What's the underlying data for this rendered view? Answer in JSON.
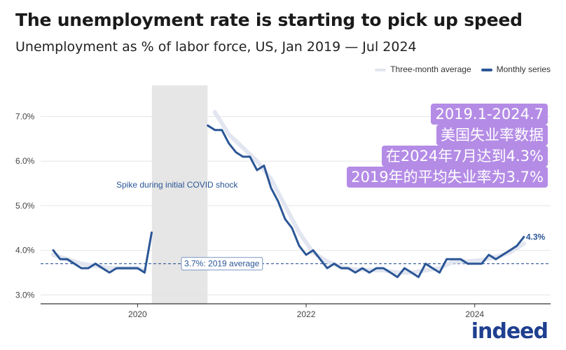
{
  "header": {
    "title": "The unemployment rate is starting to pick up speed",
    "subtitle": "Unemployment as % of labor force, US, Jan 2019 — Jul 2024"
  },
  "legend": {
    "three_month": "Three-month average",
    "monthly": "Monthly series"
  },
  "overlay": {
    "lines": [
      "2019.1-2024.7",
      "美国失业率数据",
      "在2024年7月达到4.3%",
      "2019年的平均失业率为3.7%"
    ]
  },
  "logo": {
    "text": "indeed"
  },
  "colors": {
    "monthly": "#2b5696",
    "three_month": "#e2e6f0",
    "shade": "#e6e6e6",
    "overlay": "#b48ce6",
    "average_line": "#2b5696",
    "axis_text": "#444444"
  },
  "chart_data": {
    "type": "line",
    "title": "The unemployment rate is starting to pick up speed",
    "ylabel": "Unemployment as % of labor force",
    "y_ticks": [
      3.0,
      4.0,
      5.0,
      6.0,
      7.0
    ],
    "y_tick_labels": [
      "3.0%",
      "4.0%",
      "5.0%",
      "6.0%",
      "7.0%"
    ],
    "x_ticks": [
      2020,
      2022,
      2024
    ],
    "x_tick_labels": [
      "2020",
      "2022",
      "2024"
    ],
    "xlim": [
      2018.85,
      2024.9
    ],
    "ylim": [
      2.8,
      7.7
    ],
    "shaded_region": {
      "start": 2020.17,
      "end": 2020.83,
      "label": "Spike during initial COVID shock"
    },
    "reference_line": {
      "value": 3.7,
      "label": "3.7%: 2019 average"
    },
    "end_label": "4.3%",
    "series": [
      {
        "name": "Monthly series",
        "segments": [
          [
            [
              2019.0,
              4.0
            ],
            [
              2019.083,
              3.8
            ],
            [
              2019.167,
              3.8
            ],
            [
              2019.25,
              3.7
            ],
            [
              2019.333,
              3.6
            ],
            [
              2019.417,
              3.6
            ],
            [
              2019.5,
              3.7
            ],
            [
              2019.583,
              3.6
            ],
            [
              2019.667,
              3.5
            ],
            [
              2019.75,
              3.6
            ],
            [
              2019.833,
              3.6
            ],
            [
              2019.917,
              3.6
            ],
            [
              2020.0,
              3.6
            ],
            [
              2020.083,
              3.5
            ],
            [
              2020.167,
              4.4
            ]
          ],
          [
            [
              2020.833,
              6.8
            ],
            [
              2020.917,
              6.7
            ],
            [
              2021.0,
              6.7
            ],
            [
              2021.083,
              6.4
            ],
            [
              2021.167,
              6.2
            ],
            [
              2021.25,
              6.1
            ],
            [
              2021.333,
              6.1
            ],
            [
              2021.417,
              5.8
            ],
            [
              2021.5,
              5.9
            ],
            [
              2021.583,
              5.4
            ],
            [
              2021.667,
              5.1
            ],
            [
              2021.75,
              4.7
            ],
            [
              2021.833,
              4.5
            ],
            [
              2021.917,
              4.1
            ],
            [
              2022.0,
              3.9
            ],
            [
              2022.083,
              4.0
            ],
            [
              2022.167,
              3.8
            ],
            [
              2022.25,
              3.6
            ],
            [
              2022.333,
              3.7
            ],
            [
              2022.417,
              3.6
            ],
            [
              2022.5,
              3.6
            ],
            [
              2022.583,
              3.5
            ],
            [
              2022.667,
              3.6
            ],
            [
              2022.75,
              3.5
            ],
            [
              2022.833,
              3.6
            ],
            [
              2022.917,
              3.6
            ],
            [
              2023.0,
              3.5
            ],
            [
              2023.083,
              3.4
            ],
            [
              2023.167,
              3.6
            ],
            [
              2023.25,
              3.5
            ],
            [
              2023.333,
              3.4
            ],
            [
              2023.417,
              3.7
            ],
            [
              2023.5,
              3.6
            ],
            [
              2023.583,
              3.5
            ],
            [
              2023.667,
              3.8
            ],
            [
              2023.75,
              3.8
            ],
            [
              2023.833,
              3.8
            ],
            [
              2023.917,
              3.7
            ],
            [
              2024.0,
              3.7
            ],
            [
              2024.083,
              3.7
            ],
            [
              2024.167,
              3.9
            ],
            [
              2024.25,
              3.8
            ],
            [
              2024.333,
              3.9
            ],
            [
              2024.417,
              4.0
            ],
            [
              2024.5,
              4.1
            ],
            [
              2024.583,
              4.3
            ]
          ]
        ]
      },
      {
        "name": "Three-month average",
        "segments": [
          [
            [
              2019.0,
              3.9
            ],
            [
              2019.167,
              3.8
            ],
            [
              2019.333,
              3.7
            ],
            [
              2019.5,
              3.65
            ],
            [
              2019.667,
              3.6
            ],
            [
              2019.833,
              3.6
            ],
            [
              2020.0,
              3.6
            ],
            [
              2020.083,
              3.55
            ]
          ],
          [
            [
              2020.917,
              7.1
            ],
            [
              2021.083,
              6.6
            ],
            [
              2021.25,
              6.3
            ],
            [
              2021.417,
              6.0
            ],
            [
              2021.583,
              5.6
            ],
            [
              2021.75,
              5.0
            ],
            [
              2021.917,
              4.4
            ],
            [
              2022.083,
              3.95
            ],
            [
              2022.25,
              3.75
            ],
            [
              2022.417,
              3.62
            ],
            [
              2022.583,
              3.57
            ],
            [
              2022.75,
              3.56
            ],
            [
              2022.917,
              3.55
            ],
            [
              2023.083,
              3.5
            ],
            [
              2023.25,
              3.5
            ],
            [
              2023.417,
              3.55
            ],
            [
              2023.583,
              3.6
            ],
            [
              2023.75,
              3.75
            ],
            [
              2023.917,
              3.75
            ],
            [
              2024.083,
              3.78
            ],
            [
              2024.25,
              3.85
            ],
            [
              2024.417,
              3.95
            ],
            [
              2024.583,
              4.15
            ]
          ]
        ]
      }
    ]
  }
}
